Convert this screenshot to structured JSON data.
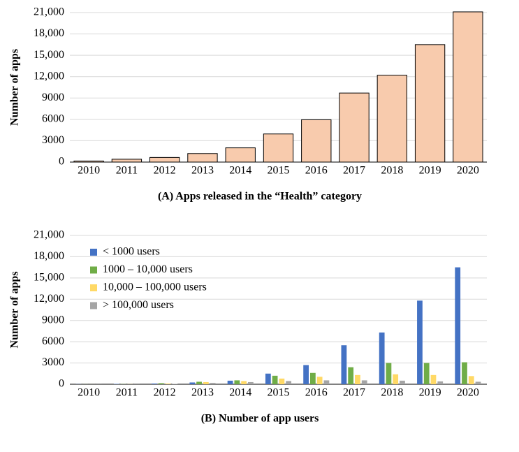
{
  "chart_data": [
    {
      "type": "bar",
      "title": "(A) Apps released in the “Health” category",
      "y_label": "Number of apps",
      "categories": [
        "2010",
        "2011",
        "2012",
        "2013",
        "2014",
        "2015",
        "2016",
        "2017",
        "2018",
        "2019",
        "2020"
      ],
      "values": [
        150,
        400,
        650,
        1200,
        2000,
        3950,
        5950,
        9700,
        12200,
        16500,
        21100
      ],
      "color": "#f8cbad",
      "edgecolor": "#000000",
      "ylim": [
        0,
        21000
      ],
      "yticks": [
        0,
        3000,
        6000,
        9000,
        {
          "value": 12000,
          "label": "12,000"
        },
        {
          "value": 15000,
          "label": "15,000"
        },
        {
          "value": 18000,
          "label": "18,000"
        },
        {
          "value": 21000,
          "label": "21,000"
        }
      ],
      "grid": true
    },
    {
      "type": "bar",
      "title": "(B) Number of app users",
      "y_label": "Number of apps",
      "categories": [
        "2010",
        "2011",
        "2012",
        "2013",
        "2014",
        "2015",
        "2016",
        "2017",
        "2018",
        "2019",
        "2020"
      ],
      "series": [
        {
          "name": "< 1000 users",
          "color": "#4472c4",
          "values": [
            20,
            50,
            100,
            250,
            500,
            1500,
            2700,
            5500,
            7300,
            11800,
            16500
          ]
        },
        {
          "name": "1000 – 10,000 users",
          "color": "#70ad47",
          "values": [
            10,
            30,
            150,
            350,
            550,
            1200,
            1600,
            2400,
            3000,
            3000,
            3100
          ]
        },
        {
          "name": "10,000 – 100,000 users",
          "color": "#ffd966",
          "values": [
            5,
            20,
            100,
            300,
            450,
            800,
            1050,
            1300,
            1400,
            1300,
            1150
          ]
        },
        {
          "name": "> 100,000 users",
          "color": "#a5a5a5",
          "values": [
            5,
            10,
            50,
            200,
            300,
            450,
            550,
            550,
            500,
            400,
            350
          ]
        }
      ],
      "ylim": [
        0,
        21000
      ],
      "yticks": [
        0,
        3000,
        6000,
        9000,
        {
          "value": 12000,
          "label": "12,000"
        },
        {
          "value": 15000,
          "label": "15,000"
        },
        {
          "value": 18000,
          "label": "18,000"
        },
        {
          "value": 21000,
          "label": "21,000"
        }
      ],
      "grid": true,
      "legend": "upper-left"
    }
  ]
}
